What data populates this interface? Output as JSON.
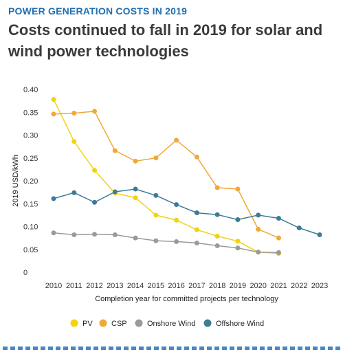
{
  "header": {
    "kicker": "POWER GENERATION COSTS IN 2019",
    "headline": "Costs continued to fall in 2019 for solar and wind power technologies"
  },
  "chart_data": {
    "type": "line",
    "xlabel": "Completion year for committed projects per technology",
    "ylabel": "2019 USD/kWh",
    "ylim": [
      0,
      0.4
    ],
    "yticks": [
      "0",
      "0.05",
      "0.10",
      "0.15",
      "0.20",
      "0.25",
      "0.30",
      "0.35",
      "0.40"
    ],
    "ytick_values": [
      0,
      0.05,
      0.1,
      0.15,
      0.2,
      0.25,
      0.3,
      0.35,
      0.4
    ],
    "x": [
      2010,
      2011,
      2012,
      2013,
      2014,
      2015,
      2016,
      2017,
      2018,
      2019,
      2020,
      2021,
      2022,
      2023
    ],
    "grid": false,
    "legend_position": "bottom",
    "series": [
      {
        "name": "PV",
        "color": "#f2d313",
        "x": [
          2010,
          2011,
          2012,
          2013,
          2014,
          2015,
          2016,
          2017,
          2018,
          2019,
          2020,
          2021
        ],
        "values": [
          0.378,
          0.286,
          0.223,
          0.173,
          0.163,
          0.125,
          0.114,
          0.093,
          0.079,
          0.068,
          0.044,
          0.041
        ]
      },
      {
        "name": "CSP",
        "color": "#f0a838",
        "x": [
          2010,
          2011,
          2012,
          2013,
          2014,
          2015,
          2016,
          2017,
          2018,
          2019,
          2020,
          2021
        ],
        "values": [
          0.346,
          0.348,
          0.352,
          0.266,
          0.243,
          0.25,
          0.289,
          0.252,
          0.185,
          0.182,
          0.094,
          0.075
        ]
      },
      {
        "name": "Onshore Wind",
        "color": "#9a9a9a",
        "x": [
          2010,
          2011,
          2012,
          2013,
          2014,
          2015,
          2016,
          2017,
          2018,
          2019,
          2020,
          2021
        ],
        "values": [
          0.086,
          0.082,
          0.083,
          0.082,
          0.075,
          0.069,
          0.067,
          0.064,
          0.058,
          0.053,
          0.044,
          0.043
        ]
      },
      {
        "name": "Offshore Wind",
        "color": "#3d7b98",
        "x": [
          2010,
          2011,
          2012,
          2013,
          2014,
          2015,
          2016,
          2017,
          2018,
          2019,
          2020,
          2021,
          2022,
          2023
        ],
        "values": [
          0.161,
          0.174,
          0.153,
          0.176,
          0.182,
          0.168,
          0.148,
          0.13,
          0.126,
          0.115,
          0.125,
          0.118,
          0.097,
          0.082
        ]
      }
    ]
  }
}
